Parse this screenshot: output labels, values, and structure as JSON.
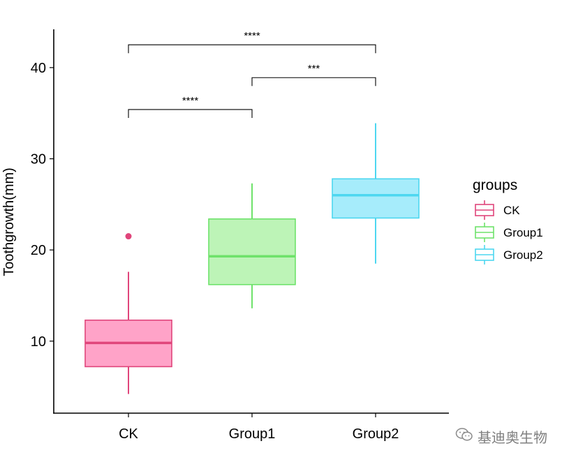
{
  "chart_data": {
    "type": "boxplot",
    "title": "",
    "xlabel": "",
    "ylabel": "Toothgrowth(mm)",
    "ylim": [
      2.1,
      44.2
    ],
    "yticks": [
      10,
      20,
      30,
      40
    ],
    "categories": [
      "CK",
      "Group1",
      "Group2"
    ],
    "boxes": [
      {
        "group": "CK",
        "whisker_low": 4.2,
        "q1": 7.2,
        "median": 9.8,
        "q3": 12.3,
        "whisker_high": 17.6,
        "outliers": [
          21.5
        ],
        "line_color": "#e0457b",
        "fill_color": "#ffa3c8"
      },
      {
        "group": "Group1",
        "whisker_low": 13.6,
        "q1": 16.2,
        "median": 19.3,
        "q3": 23.4,
        "whisker_high": 27.3,
        "outliers": [],
        "line_color": "#6ee26a",
        "fill_color": "#bdf4b7"
      },
      {
        "group": "Group2",
        "whisker_low": 18.5,
        "q1": 23.5,
        "median": 26.0,
        "q3": 27.8,
        "whisker_high": 33.9,
        "outliers": [],
        "line_color": "#4dd7f0",
        "fill_color": "#a6ecfb"
      }
    ],
    "comparisons": [
      {
        "from": "CK",
        "to": "Group1",
        "y": 35.4,
        "label": "****"
      },
      {
        "from": "Group1",
        "to": "Group2",
        "y": 38.9,
        "label": "***"
      },
      {
        "from": "CK",
        "to": "Group2",
        "y": 42.5,
        "label": "****"
      }
    ],
    "legend": {
      "title": "groups",
      "position": "right",
      "entries": [
        "CK",
        "Group1",
        "Group2"
      ]
    },
    "grid": false
  },
  "watermark": {
    "text": "基迪奥生物",
    "icon": "wechat-icon"
  }
}
